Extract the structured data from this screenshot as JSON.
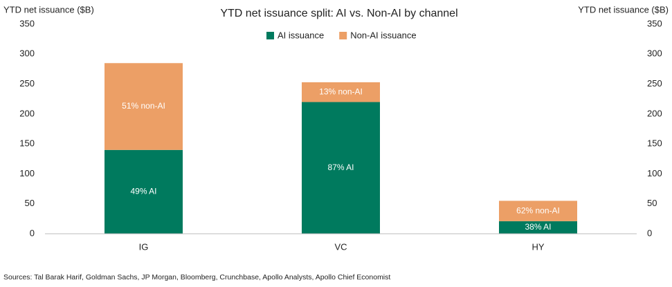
{
  "chart_data": {
    "type": "stacked_bar",
    "title": "YTD net issuance split: AI vs. Non-AI by channel",
    "y_label": "YTD net issuance ($B)",
    "y2_label": "YTD net issuance ($B)",
    "categories": [
      "IG",
      "VC",
      "HY"
    ],
    "series": [
      {
        "name": "AI issuance",
        "color": "#007a5e",
        "values": [
          140,
          220,
          21
        ],
        "annotations": [
          "49% AI",
          "87% AI",
          "38% AI"
        ]
      },
      {
        "name": "Non-AI issuance",
        "color": "#ec9f66",
        "values": [
          145,
          33,
          34
        ],
        "annotations": [
          "51% non-AI",
          "13% non-AI",
          "62% non-AI"
        ]
      }
    ],
    "ylim": [
      0,
      350
    ],
    "yticks": [
      0,
      50,
      100,
      150,
      200,
      250,
      300,
      350
    ],
    "y2lim": [
      0,
      350
    ],
    "y2ticks": [
      0,
      50,
      100,
      150,
      200,
      250,
      300,
      350
    ],
    "legend": "top",
    "source": "Sources: Tal Barak Harif, Goldman Sachs, JP Morgan, Bloomberg, Crunchbase, Apollo Analysts, Apollo Chief Economist"
  }
}
